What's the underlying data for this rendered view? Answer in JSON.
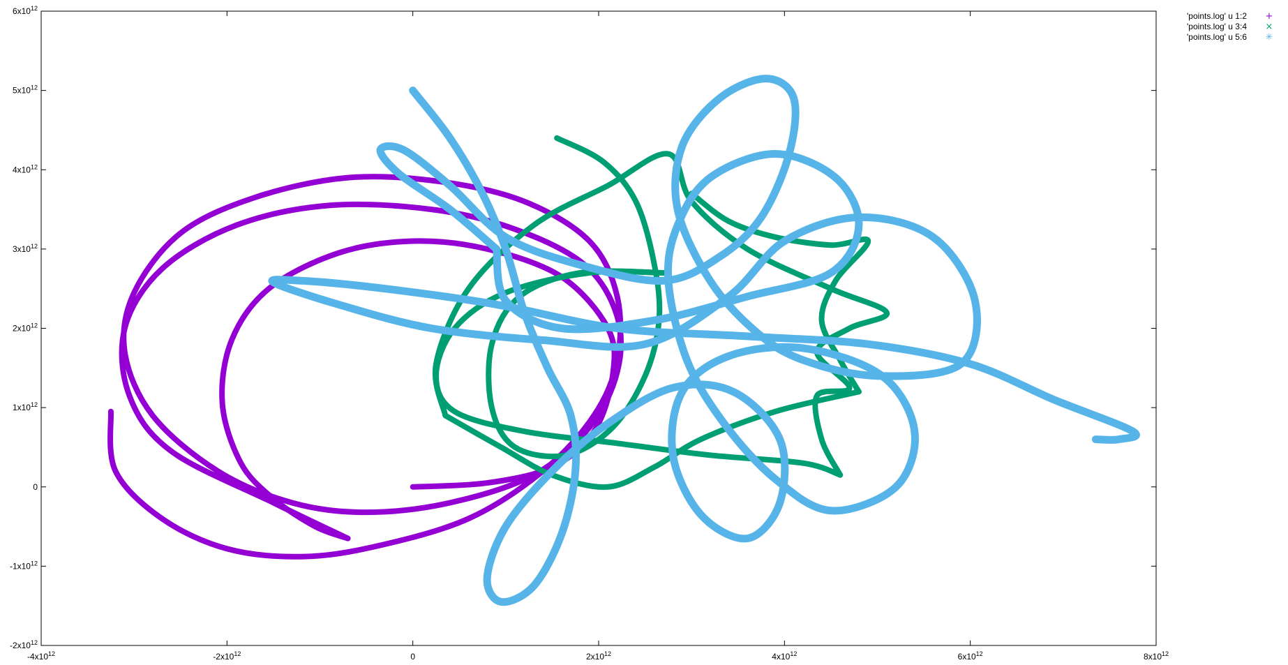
{
  "chart_data": {
    "type": "line",
    "title": "",
    "xlabel": "",
    "ylabel": "",
    "xlim": [
      -4000000000000.0,
      8000000000000.0
    ],
    "ylim": [
      -2000000000000.0,
      6000000000000.0
    ],
    "grid": false,
    "legend_position": "top-right (outside plot area)",
    "x_ticks": [
      {
        "value": -4000000000000.0,
        "base": "-4x10",
        "exp": "12"
      },
      {
        "value": -2000000000000.0,
        "base": "-2x10",
        "exp": "12"
      },
      {
        "value": 0,
        "base": "0",
        "exp": ""
      },
      {
        "value": 2000000000000.0,
        "base": "2x10",
        "exp": "12"
      },
      {
        "value": 4000000000000.0,
        "base": "4x10",
        "exp": "12"
      },
      {
        "value": 6000000000000.0,
        "base": "6x10",
        "exp": "12"
      },
      {
        "value": 8000000000000.0,
        "base": "8x10",
        "exp": "12"
      }
    ],
    "y_ticks": [
      {
        "value": -2000000000000.0,
        "base": "-2x10",
        "exp": "12"
      },
      {
        "value": -1000000000000.0,
        "base": "-1x10",
        "exp": "12"
      },
      {
        "value": 0,
        "base": "0",
        "exp": ""
      },
      {
        "value": 1000000000000.0,
        "base": "1x10",
        "exp": "12"
      },
      {
        "value": 2000000000000.0,
        "base": "2x10",
        "exp": "12"
      },
      {
        "value": 3000000000000.0,
        "base": "3x10",
        "exp": "12"
      },
      {
        "value": 4000000000000.0,
        "base": "4x10",
        "exp": "12"
      },
      {
        "value": 5000000000000.0,
        "base": "5x10",
        "exp": "12"
      },
      {
        "value": 6000000000000.0,
        "base": "6x10",
        "exp": "12"
      }
    ],
    "series": [
      {
        "name": "'points.log' u 1:2",
        "marker": "+",
        "color": "#9400d3",
        "points": [
          [
            0,
            0
          ],
          [
            800000000000.0,
            50000000000.0
          ],
          [
            1500000000000.0,
            250000000000.0
          ],
          [
            1950000000000.0,
            700000000000.0
          ],
          [
            2150000000000.0,
            1400000000000.0
          ],
          [
            2100000000000.0,
            2000000000000.0
          ],
          [
            1600000000000.0,
            2650000000000.0
          ],
          [
            800000000000.0,
            3000000000000.0
          ],
          [
            0,
            3100000000000.0
          ],
          [
            -800000000000.0,
            2950000000000.0
          ],
          [
            -1550000000000.0,
            2500000000000.0
          ],
          [
            -1950000000000.0,
            1850000000000.0
          ],
          [
            -2050000000000.0,
            1050000000000.0
          ],
          [
            -1850000000000.0,
            300000000000.0
          ],
          [
            -1500000000000.0,
            -150000000000.0
          ],
          [
            -1050000000000.0,
            -500000000000.0
          ],
          [
            -700000000000.0,
            -650000000000.0
          ]
        ]
      },
      {
        "name": "",
        "marker": "+",
        "color": "#9400d3",
        "points": [
          [
            -700000000000.0,
            -650000000000.0
          ],
          [
            -1500000000000.0,
            -200000000000.0
          ],
          [
            -2600000000000.0,
            450000000000.0
          ],
          [
            -3050000000000.0,
            1150000000000.0
          ],
          [
            -3100000000000.0,
            2000000000000.0
          ],
          [
            -2700000000000.0,
            2750000000000.0
          ],
          [
            -1900000000000.0,
            3300000000000.0
          ],
          [
            -900000000000.0,
            3550000000000.0
          ],
          [
            200000000000.0,
            3500000000000.0
          ],
          [
            1100000000000.0,
            3250000000000.0
          ],
          [
            1850000000000.0,
            2800000000000.0
          ],
          [
            2200000000000.0,
            2150000000000.0
          ],
          [
            2200000000000.0,
            1450000000000.0
          ],
          [
            1900000000000.0,
            750000000000.0
          ],
          [
            1300000000000.0,
            150000000000.0
          ],
          [
            400000000000.0,
            -200000000000.0
          ],
          [
            -500000000000.0,
            -320000000000.0
          ],
          [
            -1300000000000.0,
            -200000000000.0
          ],
          [
            -2100000000000.0,
            200000000000.0
          ],
          [
            -2800000000000.0,
            900000000000.0
          ],
          [
            -3100000000000.0,
            1700000000000.0
          ],
          [
            -3000000000000.0,
            2450000000000.0
          ],
          [
            -2500000000000.0,
            3200000000000.0
          ],
          [
            -1700000000000.0,
            3650000000000.0
          ],
          [
            -700000000000.0,
            3900000000000.0
          ],
          [
            300000000000.0,
            3850000000000.0
          ],
          [
            1200000000000.0,
            3600000000000.0
          ],
          [
            1900000000000.0,
            3100000000000.0
          ],
          [
            2200000000000.0,
            2400000000000.0
          ],
          [
            2200000000000.0,
            1600000000000.0
          ],
          [
            1950000000000.0,
            900000000000.0
          ],
          [
            1400000000000.0,
            200000000000.0
          ],
          [
            600000000000.0,
            -400000000000.0
          ],
          [
            -400000000000.0,
            -750000000000.0
          ],
          [
            -1200000000000.0,
            -880000000000.0
          ],
          [
            -2000000000000.0,
            -780000000000.0
          ],
          [
            -2700000000000.0,
            -400000000000.0
          ],
          [
            -3200000000000.0,
            200000000000.0
          ],
          [
            -3250000000000.0,
            950000000000.0
          ]
        ]
      },
      {
        "name": "'points.log' u 3:4",
        "marker": "x",
        "color": "#009e73",
        "points": [
          [
            1550000000000.0,
            4400000000000.0
          ],
          [
            2050000000000.0,
            4100000000000.0
          ],
          [
            2400000000000.0,
            3600000000000.0
          ],
          [
            2600000000000.0,
            2800000000000.0
          ],
          [
            2650000000000.0,
            2100000000000.0
          ],
          [
            2500000000000.0,
            1400000000000.0
          ],
          [
            2150000000000.0,
            750000000000.0
          ],
          [
            1650000000000.0,
            400000000000.0
          ],
          [
            1100000000000.0,
            500000000000.0
          ],
          [
            850000000000.0,
            1000000000000.0
          ],
          [
            850000000000.0,
            1800000000000.0
          ],
          [
            1150000000000.0,
            2400000000000.0
          ],
          [
            1800000000000.0,
            2700000000000.0
          ],
          [
            2700000000000.0,
            2700000000000.0
          ]
        ]
      },
      {
        "name": "",
        "marker": "x",
        "color": "#009e73",
        "points": [
          [
            2700000000000.0,
            2700000000000.0
          ],
          [
            1900000000000.0,
            2700000000000.0
          ],
          [
            1000000000000.0,
            2450000000000.0
          ],
          [
            450000000000.0,
            2000000000000.0
          ],
          [
            250000000000.0,
            1400000000000.0
          ],
          [
            450000000000.0,
            950000000000.0
          ],
          [
            1200000000000.0,
            700000000000.0
          ],
          [
            2200000000000.0,
            550000000000.0
          ],
          [
            3200000000000.0,
            400000000000.0
          ],
          [
            4200000000000.0,
            300000000000.0
          ],
          [
            4600000000000.0,
            150000000000.0
          ]
        ]
      },
      {
        "name": "",
        "marker": "x",
        "color": "#009e73",
        "points": [
          [
            4600000000000.0,
            150000000000.0
          ],
          [
            4400000000000.0,
            600000000000.0
          ],
          [
            4350000000000.0,
            1150000000000.0
          ],
          [
            4700000000000.0,
            1250000000000.0
          ],
          [
            4350000000000.0,
            1700000000000.0
          ],
          [
            4700000000000.0,
            2000000000000.0
          ],
          [
            5100000000000.0,
            2200000000000.0
          ],
          [
            4500000000000.0,
            2500000000000.0
          ],
          [
            3600000000000.0,
            3000000000000.0
          ],
          [
            3000000000000.0,
            3600000000000.0
          ],
          [
            2750000000000.0,
            4200000000000.0
          ],
          [
            2100000000000.0,
            3800000000000.0
          ],
          [
            1300000000000.0,
            3300000000000.0
          ],
          [
            600000000000.0,
            2500000000000.0
          ],
          [
            250000000000.0,
            1550000000000.0
          ],
          [
            350000000000.0,
            900000000000.0
          ]
        ]
      },
      {
        "name": "",
        "marker": "x",
        "color": "#009e73",
        "points": [
          [
            350000000000.0,
            900000000000.0
          ],
          [
            950000000000.0,
            500000000000.0
          ],
          [
            1500000000000.0,
            150000000000.0
          ],
          [
            2100000000000.0,
            0.0
          ],
          [
            2600000000000.0,
            250000000000.0
          ],
          [
            3100000000000.0,
            600000000000.0
          ],
          [
            3900000000000.0,
            950000000000.0
          ],
          [
            4800000000000.0,
            1200000000000.0
          ]
        ]
      },
      {
        "name": "",
        "marker": "x",
        "color": "#009e73",
        "points": [
          [
            3000000000000.0,
            3700000000000.0
          ],
          [
            3400000000000.0,
            3350000000000.0
          ],
          [
            3900000000000.0,
            3150000000000.0
          ],
          [
            4500000000000.0,
            3050000000000.0
          ],
          [
            4900000000000.0,
            3100000000000.0
          ],
          [
            4550000000000.0,
            2600000000000.0
          ],
          [
            4400000000000.0,
            2100000000000.0
          ],
          [
            4600000000000.0,
            1600000000000.0
          ],
          [
            4800000000000.0,
            1200000000000.0
          ]
        ]
      },
      {
        "name": "'points.log' u 5:6",
        "marker": "*",
        "color": "#56b4e9",
        "points": [
          [
            0,
            5000000000000.0
          ],
          [
            400000000000.0,
            4400000000000.0
          ],
          [
            750000000000.0,
            3700000000000.0
          ],
          [
            1000000000000.0,
            3000000000000.0
          ],
          [
            1200000000000.0,
            2200000000000.0
          ],
          [
            1450000000000.0,
            1500000000000.0
          ],
          [
            1700000000000.0,
            900000000000.0
          ],
          [
            1750000000000.0,
            200000000000.0
          ],
          [
            1600000000000.0,
            -600000000000.0
          ],
          [
            1300000000000.0,
            -1250000000000.0
          ],
          [
            950000000000.0,
            -1450000000000.0
          ],
          [
            800000000000.0,
            -1150000000000.0
          ],
          [
            1000000000000.0,
            -500000000000.0
          ],
          [
            1500000000000.0,
            200000000000.0
          ],
          [
            2100000000000.0,
            800000000000.0
          ],
          [
            2800000000000.0,
            1250000000000.0
          ],
          [
            3450000000000.0,
            1200000000000.0
          ],
          [
            3950000000000.0,
            600000000000.0
          ],
          [
            3950000000000.0,
            -200000000000.0
          ],
          [
            3600000000000.0,
            -650000000000.0
          ],
          [
            3100000000000.0,
            -350000000000.0
          ],
          [
            2800000000000.0,
            400000000000.0
          ],
          [
            2900000000000.0,
            1200000000000.0
          ],
          [
            3400000000000.0,
            1650000000000.0
          ],
          [
            4200000000000.0,
            1750000000000.0
          ],
          [
            5050000000000.0,
            1400000000000.0
          ],
          [
            5400000000000.0,
            700000000000.0
          ],
          [
            5200000000000.0,
            0.0
          ],
          [
            4500000000000.0,
            -300000000000.0
          ],
          [
            3900000000000.0,
            100000000000.0
          ],
          [
            3350000000000.0,
            800000000000.0
          ],
          [
            2950000000000.0,
            1600000000000.0
          ],
          [
            2750000000000.0,
            2600000000000.0
          ],
          [
            2850000000000.0,
            3300000000000.0
          ],
          [
            3200000000000.0,
            3900000000000.0
          ],
          [
            3900000000000.0,
            4200000000000.0
          ],
          [
            4550000000000.0,
            3900000000000.0
          ],
          [
            4800000000000.0,
            3300000000000.0
          ],
          [
            4500000000000.0,
            2700000000000.0
          ],
          [
            3600000000000.0,
            2400000000000.0
          ],
          [
            2600000000000.0,
            2100000000000.0
          ],
          [
            1600000000000.0,
            2000000000000.0
          ],
          [
            1000000000000.0,
            2350000000000.0
          ],
          [
            900000000000.0,
            3000000000000.0
          ]
        ]
      },
      {
        "name": "",
        "marker": "*",
        "color": "#56b4e9",
        "points": [
          [
            900000000000.0,
            3000000000000.0
          ],
          [
            400000000000.0,
            3500000000000.0
          ],
          [
            -150000000000.0,
            3950000000000.0
          ],
          [
            -350000000000.0,
            4250000000000.0
          ],
          [
            -100000000000.0,
            4250000000000.0
          ],
          [
            400000000000.0,
            3800000000000.0
          ],
          [
            1000000000000.0,
            3150000000000.0
          ],
          [
            1800000000000.0,
            2800000000000.0
          ],
          [
            2700000000000.0,
            2600000000000.0
          ],
          [
            3300000000000.0,
            2900000000000.0
          ],
          [
            3750000000000.0,
            3400000000000.0
          ],
          [
            4050000000000.0,
            4200000000000.0
          ],
          [
            4100000000000.0,
            4900000000000.0
          ],
          [
            3800000000000.0,
            5150000000000.0
          ],
          [
            3300000000000.0,
            4900000000000.0
          ],
          [
            2900000000000.0,
            4300000000000.0
          ],
          [
            2850000000000.0,
            3500000000000.0
          ],
          [
            3200000000000.0,
            2600000000000.0
          ],
          [
            3700000000000.0,
            1950000000000.0
          ],
          [
            4200000000000.0,
            1600000000000.0
          ],
          [
            5000000000000.0,
            1400000000000.0
          ],
          [
            5900000000000.0,
            1550000000000.0
          ],
          [
            6050000000000.0,
            2350000000000.0
          ],
          [
            5600000000000.0,
            3150000000000.0
          ],
          [
            4800000000000.0,
            3400000000000.0
          ],
          [
            4000000000000.0,
            3100000000000.0
          ],
          [
            3400000000000.0,
            2400000000000.0
          ],
          [
            2500000000000.0,
            1800000000000.0
          ],
          [
            1400000000000.0,
            1850000000000.0
          ],
          [
            200000000000.0,
            2000000000000.0
          ],
          [
            -800000000000.0,
            2300000000000.0
          ],
          [
            -1500000000000.0,
            2580000000000.0
          ],
          [
            -1200000000000.0,
            2600000000000.0
          ],
          [
            -300000000000.0,
            2500000000000.0
          ],
          [
            900000000000.0,
            2300000000000.0
          ],
          [
            2200000000000.0,
            2000000000000.0
          ],
          [
            3600000000000.0,
            1900000000000.0
          ],
          [
            4900000000000.0,
            1800000000000.0
          ],
          [
            6000000000000.0,
            1550000000000.0
          ],
          [
            6900000000000.0,
            1100000000000.0
          ],
          [
            7750000000000.0,
            700000000000.0
          ],
          [
            7600000000000.0,
            600000000000.0
          ],
          [
            7350000000000.0,
            600000000000.0
          ]
        ]
      }
    ]
  },
  "legend": [
    {
      "label": "'points.log' u 1:2",
      "glyph": "+",
      "color": "#9400d3"
    },
    {
      "label": "'points.log' u 3:4",
      "glyph": "×",
      "color": "#009e73"
    },
    {
      "label": "'points.log' u 5:6",
      "glyph": "✳",
      "color": "#56b4e9"
    }
  ]
}
